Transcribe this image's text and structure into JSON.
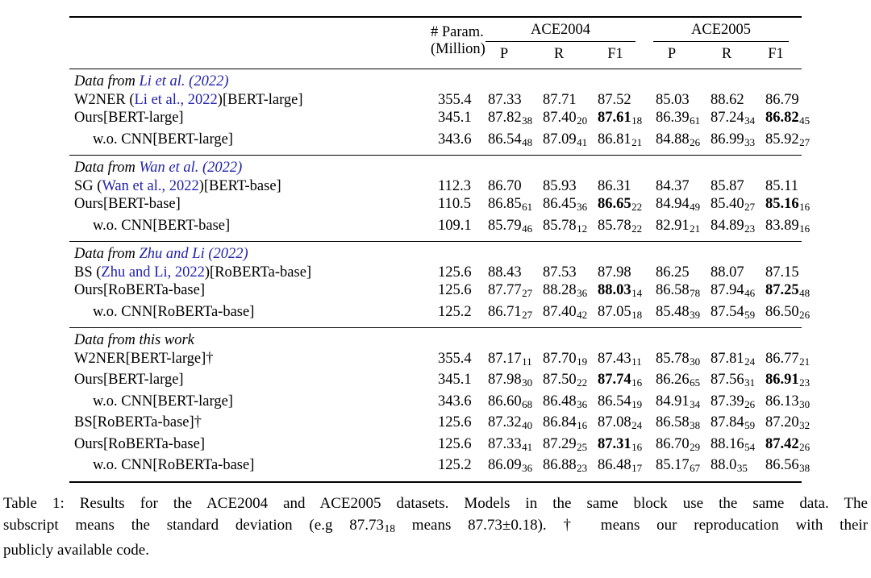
{
  "colors": {
    "background": "#ffffff",
    "text": "#000000",
    "citation": "#2222aa"
  },
  "table": {
    "header": {
      "param_line1": "# Param.",
      "param_line2": "(Million)",
      "group1": "ACE2004",
      "group2": "ACE2005",
      "subcols": [
        "P",
        "R",
        "F1"
      ]
    },
    "blocks": [
      {
        "title_parts": [
          {
            "t": "Data from ",
            "link": false
          },
          {
            "t": "Li et al. (2022)",
            "link": true
          }
        ],
        "rows": [
          {
            "label_parts": [
              {
                "t": "W2NER (",
                "link": false
              },
              {
                "t": "Li et al., 2022",
                "link": true
              },
              {
                "t": ")[BERT-large]",
                "link": false
              }
            ],
            "indent": false,
            "param": "355.4",
            "cells": [
              {
                "v": "87.33"
              },
              {
                "v": "87.71"
              },
              {
                "v": "87.52"
              },
              {
                "v": "85.03"
              },
              {
                "v": "88.62"
              },
              {
                "v": "86.79"
              }
            ]
          },
          {
            "label_parts": [
              {
                "t": "Ours[BERT-large]",
                "link": false
              }
            ],
            "indent": false,
            "param": "345.1",
            "cells": [
              {
                "v": "87.82",
                "s": "38"
              },
              {
                "v": "87.40",
                "s": "20"
              },
              {
                "v": "87.61",
                "s": "18",
                "b": true
              },
              {
                "v": "86.39",
                "s": "61"
              },
              {
                "v": "87.24",
                "s": "34"
              },
              {
                "v": "86.82",
                "s": "45",
                "b": true
              }
            ]
          },
          {
            "label_parts": [
              {
                "t": "w.o. CNN[BERT-large]",
                "link": false
              }
            ],
            "indent": true,
            "param": "343.6",
            "cells": [
              {
                "v": "86.54",
                "s": "48"
              },
              {
                "v": "87.09",
                "s": "41"
              },
              {
                "v": "86.81",
                "s": "21"
              },
              {
                "v": "84.88",
                "s": "26"
              },
              {
                "v": "86.99",
                "s": "33"
              },
              {
                "v": "85.92",
                "s": "27"
              }
            ]
          }
        ]
      },
      {
        "title_parts": [
          {
            "t": "Data from ",
            "link": false
          },
          {
            "t": "Wan et al. (2022)",
            "link": true
          }
        ],
        "rows": [
          {
            "label_parts": [
              {
                "t": "SG (",
                "link": false
              },
              {
                "t": "Wan et al., 2022",
                "link": true
              },
              {
                "t": ")[BERT-base]",
                "link": false
              }
            ],
            "indent": false,
            "param": "112.3",
            "cells": [
              {
                "v": "86.70"
              },
              {
                "v": "85.93"
              },
              {
                "v": "86.31"
              },
              {
                "v": "84.37"
              },
              {
                "v": "85.87"
              },
              {
                "v": "85.11"
              }
            ]
          },
          {
            "label_parts": [
              {
                "t": "Ours[BERT-base]",
                "link": false
              }
            ],
            "indent": false,
            "param": "110.5",
            "cells": [
              {
                "v": "86.85",
                "s": "61"
              },
              {
                "v": "86.45",
                "s": "36"
              },
              {
                "v": "86.65",
                "s": "22",
                "b": true
              },
              {
                "v": "84.94",
                "s": "49"
              },
              {
                "v": "85.40",
                "s": "27"
              },
              {
                "v": "85.16",
                "s": "16",
                "b": true
              }
            ]
          },
          {
            "label_parts": [
              {
                "t": "w.o. CNN[BERT-base]",
                "link": false
              }
            ],
            "indent": true,
            "param": "109.1",
            "cells": [
              {
                "v": "85.79",
                "s": "46"
              },
              {
                "v": "85.78",
                "s": "12"
              },
              {
                "v": "85.78",
                "s": "22"
              },
              {
                "v": "82.91",
                "s": "21"
              },
              {
                "v": "84.89",
                "s": "23"
              },
              {
                "v": "83.89",
                "s": "16"
              }
            ]
          }
        ]
      },
      {
        "title_parts": [
          {
            "t": "Data from ",
            "link": false
          },
          {
            "t": "Zhu and Li (2022)",
            "link": true
          }
        ],
        "rows": [
          {
            "label_parts": [
              {
                "t": "BS (",
                "link": false
              },
              {
                "t": "Zhu and Li, 2022",
                "link": true
              },
              {
                "t": ")[RoBERTa-base]",
                "link": false
              }
            ],
            "indent": false,
            "param": "125.6",
            "cells": [
              {
                "v": "88.43"
              },
              {
                "v": "87.53"
              },
              {
                "v": "87.98"
              },
              {
                "v": "86.25"
              },
              {
                "v": "88.07"
              },
              {
                "v": "87.15"
              }
            ]
          },
          {
            "label_parts": [
              {
                "t": "Ours[RoBERTa-base]",
                "link": false
              }
            ],
            "indent": false,
            "param": "125.6",
            "cells": [
              {
                "v": "87.77",
                "s": "27"
              },
              {
                "v": "88.28",
                "s": "36"
              },
              {
                "v": "88.03",
                "s": "14",
                "b": true
              },
              {
                "v": "86.58",
                "s": "78"
              },
              {
                "v": "87.94",
                "s": "46"
              },
              {
                "v": "87.25",
                "s": "48",
                "b": true
              }
            ]
          },
          {
            "label_parts": [
              {
                "t": "w.o. CNN[RoBERTa-base]",
                "link": false
              }
            ],
            "indent": true,
            "param": "125.2",
            "cells": [
              {
                "v": "86.71",
                "s": "27"
              },
              {
                "v": "87.40",
                "s": "42"
              },
              {
                "v": "87.05",
                "s": "18"
              },
              {
                "v": "85.48",
                "s": "39"
              },
              {
                "v": "87.54",
                "s": "59"
              },
              {
                "v": "86.50",
                "s": "26"
              }
            ]
          }
        ]
      },
      {
        "title_parts": [
          {
            "t": "Data from this work",
            "link": false
          }
        ],
        "rows": [
          {
            "label_parts": [
              {
                "t": "W2NER[BERT-large]†",
                "link": false
              }
            ],
            "indent": false,
            "param": "355.4",
            "cells": [
              {
                "v": "87.17",
                "s": "11"
              },
              {
                "v": "87.70",
                "s": "19"
              },
              {
                "v": "87.43",
                "s": "11"
              },
              {
                "v": "85.78",
                "s": "30"
              },
              {
                "v": "87.81",
                "s": "24"
              },
              {
                "v": "86.77",
                "s": "21"
              }
            ]
          },
          {
            "label_parts": [
              {
                "t": "Ours[BERT-large]",
                "link": false
              }
            ],
            "indent": false,
            "param": "345.1",
            "cells": [
              {
                "v": "87.98",
                "s": "30"
              },
              {
                "v": "87.50",
                "s": "22"
              },
              {
                "v": "87.74",
                "s": "16",
                "b": true
              },
              {
                "v": "86.26",
                "s": "65"
              },
              {
                "v": "87.56",
                "s": "31"
              },
              {
                "v": "86.91",
                "s": "23",
                "b": true
              }
            ]
          },
          {
            "label_parts": [
              {
                "t": "w.o. CNN[BERT-large]",
                "link": false
              }
            ],
            "indent": true,
            "param": "343.6",
            "cells": [
              {
                "v": "86.60",
                "s": "68"
              },
              {
                "v": "86.48",
                "s": "36"
              },
              {
                "v": "86.54",
                "s": "19"
              },
              {
                "v": "84.91",
                "s": "34"
              },
              {
                "v": "87.39",
                "s": "26"
              },
              {
                "v": "86.13",
                "s": "30"
              }
            ]
          },
          {
            "label_parts": [
              {
                "t": "BS[RoBERTa-base]†",
                "link": false
              }
            ],
            "indent": false,
            "param": "125.6",
            "cells": [
              {
                "v": "87.32",
                "s": "40"
              },
              {
                "v": "86.84",
                "s": "16"
              },
              {
                "v": "87.08",
                "s": "24"
              },
              {
                "v": "86.58",
                "s": "38"
              },
              {
                "v": "87.84",
                "s": "59"
              },
              {
                "v": "87.20",
                "s": "32"
              }
            ]
          },
          {
            "label_parts": [
              {
                "t": "Ours[RoBERTa-base]",
                "link": false
              }
            ],
            "indent": false,
            "param": "125.6",
            "cells": [
              {
                "v": "87.33",
                "s": "41"
              },
              {
                "v": "87.29",
                "s": "25"
              },
              {
                "v": "87.31",
                "s": "16",
                "b": true
              },
              {
                "v": "86.70",
                "s": "29"
              },
              {
                "v": "88.16",
                "s": "54"
              },
              {
                "v": "87.42",
                "s": "26",
                "b": true
              }
            ]
          },
          {
            "label_parts": [
              {
                "t": "w.o. CNN[RoBERTa-base]",
                "link": false
              }
            ],
            "indent": true,
            "param": "125.2",
            "cells": [
              {
                "v": "86.09",
                "s": "36"
              },
              {
                "v": "86.88",
                "s": "23"
              },
              {
                "v": "86.48",
                "s": "17"
              },
              {
                "v": "85.17",
                "s": "67"
              },
              {
                "v": "88.0",
                "s": "35"
              },
              {
                "v": "86.56",
                "s": "38"
              }
            ]
          }
        ]
      }
    ]
  },
  "caption": {
    "lines": [
      {
        "justify": true,
        "parts": [
          {
            "t": "Table 1: Results for the ACE2004 and ACE2005 datasets. Models in the same block use the same data. The"
          }
        ]
      },
      {
        "justify": true,
        "parts": [
          {
            "t": "subscript means the standard deviation (e.g 87.73"
          },
          {
            "t": "18",
            "sub": true
          },
          {
            "t": " means 87.73±0.18). † means our reproducation with their"
          }
        ]
      },
      {
        "justify": false,
        "parts": [
          {
            "t": "publicly available code."
          }
        ]
      }
    ]
  }
}
